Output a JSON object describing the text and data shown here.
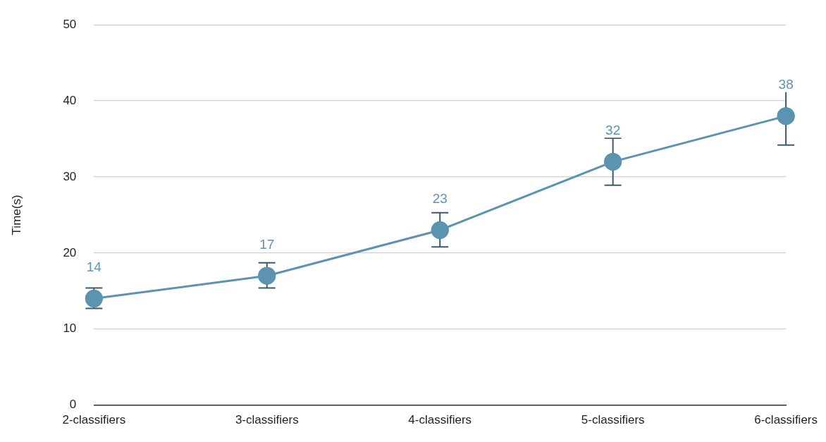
{
  "chart_data": {
    "type": "line",
    "ylabel": "Time(s)",
    "categories": [
      "2-classifiers",
      "3-classifiers",
      "4-classifiers",
      "5-classifiers",
      "6-classifiers"
    ],
    "series": [
      {
        "color": "#5b93b0",
        "values": [
          14,
          17,
          23,
          32,
          38
        ],
        "errors": [
          [
            12.7,
            15.4
          ],
          [
            15.4,
            18.7
          ],
          [
            20.8,
            25.3
          ],
          [
            28.9,
            35.1
          ],
          [
            34.2,
            41.8
          ]
        ]
      }
    ],
    "ylim": [
      0,
      50
    ],
    "yticks": [
      0,
      10,
      20,
      30,
      40,
      50
    ],
    "grid": "y",
    "legend": false,
    "marker": "circle",
    "line_style": "solid",
    "data_labels": true
  }
}
